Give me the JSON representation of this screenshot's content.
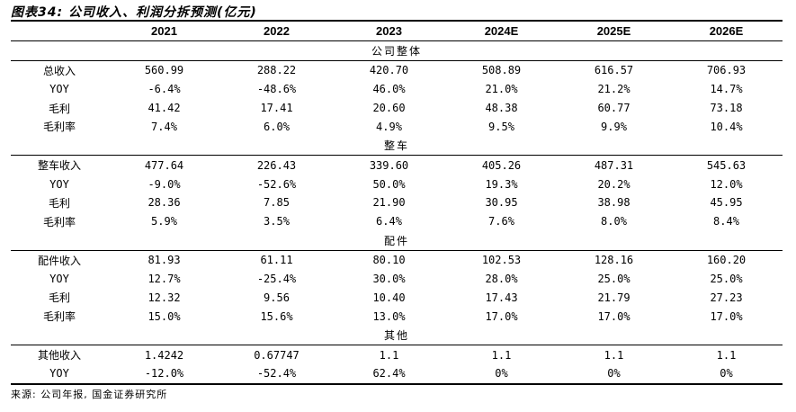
{
  "title": "图表34: 公司收入、利润分拆预测(亿元)",
  "columns": [
    "",
    "2021",
    "2022",
    "2023",
    "2024E",
    "2025E",
    "2026E"
  ],
  "sections": [
    {
      "name": "公司整体",
      "rows": [
        {
          "label": "总收入",
          "values": [
            "560.99",
            "288.22",
            "420.70",
            "508.89",
            "616.57",
            "706.93"
          ]
        },
        {
          "label": "YOY",
          "values": [
            "-6.4%",
            "-48.6%",
            "46.0%",
            "21.0%",
            "21.2%",
            "14.7%"
          ]
        },
        {
          "label": "毛利",
          "values": [
            "41.42",
            "17.41",
            "20.60",
            "48.38",
            "60.77",
            "73.18"
          ]
        },
        {
          "label": "毛利率",
          "values": [
            "7.4%",
            "6.0%",
            "4.9%",
            "9.5%",
            "9.9%",
            "10.4%"
          ]
        }
      ]
    },
    {
      "name": "整车",
      "rows": [
        {
          "label": "整车收入",
          "values": [
            "477.64",
            "226.43",
            "339.60",
            "405.26",
            "487.31",
            "545.63"
          ]
        },
        {
          "label": "YOY",
          "values": [
            "-9.0%",
            "-52.6%",
            "50.0%",
            "19.3%",
            "20.2%",
            "12.0%"
          ]
        },
        {
          "label": "毛利",
          "values": [
            "28.36",
            "7.85",
            "21.90",
            "30.95",
            "38.98",
            "45.95"
          ]
        },
        {
          "label": "毛利率",
          "values": [
            "5.9%",
            "3.5%",
            "6.4%",
            "7.6%",
            "8.0%",
            "8.4%"
          ]
        }
      ]
    },
    {
      "name": "配件",
      "rows": [
        {
          "label": "配件收入",
          "values": [
            "81.93",
            "61.11",
            "80.10",
            "102.53",
            "128.16",
            "160.20"
          ]
        },
        {
          "label": "YOY",
          "values": [
            "12.7%",
            "-25.4%",
            "30.0%",
            "28.0%",
            "25.0%",
            "25.0%"
          ]
        },
        {
          "label": "毛利",
          "values": [
            "12.32",
            "9.56",
            "10.40",
            "17.43",
            "21.79",
            "27.23"
          ]
        },
        {
          "label": "毛利率",
          "values": [
            "15.0%",
            "15.6%",
            "13.0%",
            "17.0%",
            "17.0%",
            "17.0%"
          ]
        }
      ]
    },
    {
      "name": "其他",
      "rows": [
        {
          "label": "其他收入",
          "values": [
            "1.4242",
            "0.67747",
            "1.1",
            "1.1",
            "1.1",
            "1.1"
          ]
        },
        {
          "label": "YOY",
          "values": [
            "-12.0%",
            "-52.4%",
            "62.4%",
            "0%",
            "0%",
            "0%"
          ]
        }
      ]
    }
  ],
  "source": "来源: 公司年报, 国金证券研究所"
}
